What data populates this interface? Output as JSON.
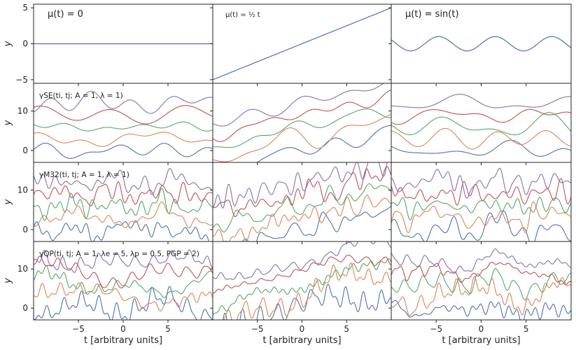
{
  "chart_data": {
    "type": "line",
    "layout": "4 rows x 3 columns grid of line plots, shared axes",
    "xlabel": "t [arbitrary units]",
    "ylabel": "y",
    "xlim": [
      -10,
      10
    ],
    "xticks": [
      -5,
      0,
      5
    ],
    "xtick_labels": [
      "−5",
      "0",
      "5"
    ],
    "series_colors": [
      "#4c72b0",
      "#dd8452",
      "#55a868",
      "#c44e52",
      "#8172b3"
    ],
    "rows": [
      {
        "kind": "mean",
        "ylim": [
          -5.5,
          5.5
        ],
        "yticks": [
          -5,
          0,
          5
        ],
        "ytick_labels": [
          "−5",
          "0",
          "5"
        ],
        "panels": [
          {
            "label": "μ(t) = 0",
            "mean": "zero"
          },
          {
            "label": "μ(t) = ½ t",
            "mean": "half_t"
          },
          {
            "label": "μ(t) = sin(t)",
            "mean": "sin_t"
          }
        ]
      },
      {
        "kind": "samples",
        "kernel_label": "γSE(ti, tj; A = 1, λ = 1)",
        "kernel": "SE",
        "ylim": [
          -3,
          17
        ],
        "yticks": [
          0,
          10
        ],
        "ytick_labels": [
          "0",
          "10"
        ],
        "offsets": [
          0,
          3,
          6,
          9,
          12
        ]
      },
      {
        "kind": "samples",
        "kernel_label": "γM32(ti, tj; A = 1, λ = 1)",
        "kernel": "M32",
        "ylim": [
          -3,
          17
        ],
        "yticks": [
          0,
          10
        ],
        "ytick_labels": [
          "0",
          "10"
        ],
        "offsets": [
          0,
          3,
          6,
          9,
          12
        ]
      },
      {
        "kind": "samples",
        "kernel_label": "γQP(ti, tj; A = 1, λe = 5, λp = 0.5, PGP = 2)",
        "kernel": "QP",
        "ylim": [
          -3,
          17
        ],
        "yticks": [
          0,
          10
        ],
        "ytick_labels": [
          "0",
          "10"
        ],
        "offsets": [
          0,
          3,
          6,
          9,
          12
        ]
      }
    ]
  }
}
